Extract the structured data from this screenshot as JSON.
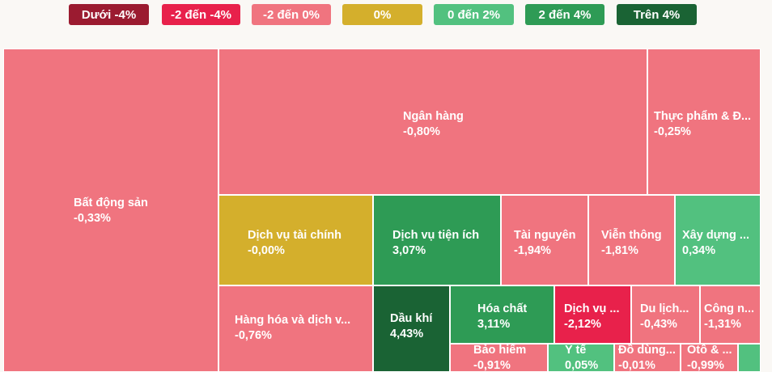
{
  "legend": [
    {
      "label": "Dưới -4%",
      "color": "#9b1b30"
    },
    {
      "label": "-2 đến -4%",
      "color": "#e8214b"
    },
    {
      "label": "-2 đến 0%",
      "color": "#f0747f"
    },
    {
      "label": "0%",
      "color": "#d4af2c"
    },
    {
      "label": "0 đến 2%",
      "color": "#52c17f"
    },
    {
      "label": "2 đến 4%",
      "color": "#2e9b55"
    },
    {
      "label": "Trên 4%",
      "color": "#1a6334"
    }
  ],
  "chart_data": {
    "type": "treemap",
    "unit": "%",
    "sectors": [
      {
        "name": "Bất động sản",
        "change": -0.33,
        "label": "-0,33%"
      },
      {
        "name": "Ngân hàng",
        "change": -0.8,
        "label": "-0,80%"
      },
      {
        "name": "Thực phẩm & Đ...",
        "change": -0.25,
        "label": "-0,25%"
      },
      {
        "name": "Dịch vụ tài chính",
        "change": -0.0,
        "label": "-0,00%"
      },
      {
        "name": "Dịch vụ tiện ích",
        "change": 3.07,
        "label": "3,07%"
      },
      {
        "name": "Tài nguyên",
        "change": -1.94,
        "label": "-1,94%"
      },
      {
        "name": "Viễn thông",
        "change": -1.81,
        "label": "-1,81%"
      },
      {
        "name": "Xây dựng ...",
        "change": 0.34,
        "label": "0,34%"
      },
      {
        "name": "Hàng hóa và dịch v...",
        "change": -0.76,
        "label": "-0,76%"
      },
      {
        "name": "Dầu khí",
        "change": 4.43,
        "label": "4,43%"
      },
      {
        "name": "Hóa chất",
        "change": 3.11,
        "label": "3,11%"
      },
      {
        "name": "Dịch vụ ...",
        "change": -2.12,
        "label": "-2,12%"
      },
      {
        "name": "Du lịch...",
        "change": -0.43,
        "label": "-0,43%"
      },
      {
        "name": "Công n...",
        "change": -1.31,
        "label": "-1,31%"
      },
      {
        "name": "Bảo hiểm",
        "change": -0.91,
        "label": "-0,91%"
      },
      {
        "name": "Y tế",
        "change": 0.05,
        "label": "0,05%"
      },
      {
        "name": "Đồ dùng...",
        "change": -0.01,
        "label": "-0,01%"
      },
      {
        "name": "Ôtô & ...",
        "change": -0.99,
        "label": "-0,99%"
      },
      {
        "name": "",
        "change": 1.0,
        "label": ""
      }
    ]
  }
}
